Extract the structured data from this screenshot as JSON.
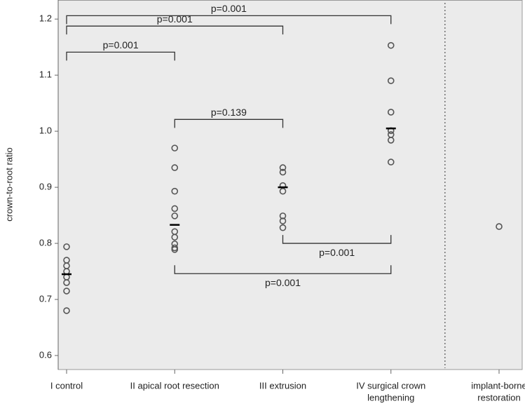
{
  "chart_data": {
    "type": "dotplot",
    "ylabel": "crown-to-root ratio",
    "categories": [
      [
        "I control"
      ],
      [
        "II apical root resection"
      ],
      [
        "III extrusion"
      ],
      [
        "IV surgical crown",
        "lengthening"
      ],
      [
        "implant-borne",
        "restoration"
      ]
    ],
    "points": [
      [
        0.794,
        0.77,
        0.76,
        0.75,
        0.74,
        0.73,
        0.715,
        0.68
      ],
      [
        0.97,
        0.935,
        0.893,
        0.862,
        0.849,
        0.821,
        0.811,
        0.799,
        0.792,
        0.789
      ],
      [
        0.935,
        0.927,
        0.903,
        0.893,
        0.849,
        0.84,
        0.828
      ],
      [
        1.153,
        1.09,
        1.034,
        1.001,
        0.994,
        0.984,
        0.945
      ],
      [
        0.83
      ]
    ],
    "means": [
      0.745,
      0.833,
      0.9,
      1.005,
      null
    ],
    "ylim": [
      0.575,
      1.234
    ],
    "yticks": [
      0.6,
      0.7,
      0.8,
      0.9,
      {
        "value": 1,
        "label": "1.0"
      },
      1.1,
      1.2
    ],
    "comparisons": [
      {
        "label": "p=0.001",
        "from": 0,
        "to": 3,
        "y": 1.206,
        "side": "above"
      },
      {
        "label": "p=0.001",
        "from": 0,
        "to": 2,
        "y": 1.1875,
        "side": "above"
      },
      {
        "label": "p=0.001",
        "from": 0,
        "to": 1,
        "y": 1.141,
        "side": "above"
      },
      {
        "label": "p=0.139",
        "from": 1,
        "to": 2,
        "y": 1.021,
        "side": "above"
      },
      {
        "label": "p=0.001",
        "from": 2,
        "to": 3,
        "y": 0.8,
        "side": "below"
      },
      {
        "label": "p=0.001",
        "from": 1,
        "to": 3,
        "y": 0.746,
        "side": "below"
      }
    ]
  }
}
